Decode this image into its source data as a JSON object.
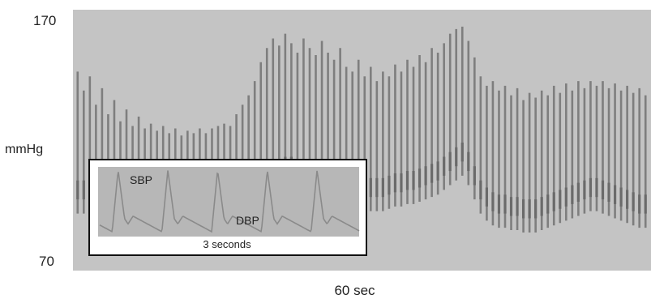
{
  "chart_data": {
    "type": "line",
    "title": "",
    "ylabel": "mmHg",
    "xlabel": "60 sec",
    "ylim": [
      70,
      170
    ],
    "yticks": [
      "170",
      "70"
    ],
    "series": [
      {
        "name": "",
        "description_free": true,
        "beats": [
          [
            150,
            100
          ],
          [
            142,
            100
          ],
          [
            148,
            98
          ],
          [
            136,
            96
          ],
          [
            143,
            96
          ],
          [
            132,
            94
          ],
          [
            138,
            94
          ],
          [
            129,
            93
          ],
          [
            134,
            92
          ],
          [
            127,
            92
          ],
          [
            131,
            91
          ],
          [
            126,
            91
          ],
          [
            128,
            90
          ],
          [
            125,
            90
          ],
          [
            127,
            90
          ],
          [
            124,
            89
          ],
          [
            126,
            89
          ],
          [
            123,
            89
          ],
          [
            125,
            89
          ],
          [
            124,
            88
          ],
          [
            126,
            89
          ],
          [
            124,
            89
          ],
          [
            126,
            90
          ],
          [
            127,
            90
          ],
          [
            128,
            90
          ],
          [
            127,
            90
          ],
          [
            132,
            92
          ],
          [
            136,
            95
          ],
          [
            140,
            98
          ],
          [
            146,
            100
          ],
          [
            154,
            104
          ],
          [
            160,
            106
          ],
          [
            164,
            108
          ],
          [
            161,
            109
          ],
          [
            166,
            110
          ],
          [
            162,
            110
          ],
          [
            158,
            109
          ],
          [
            164,
            108
          ],
          [
            160,
            107
          ],
          [
            157,
            106
          ],
          [
            163,
            106
          ],
          [
            158,
            105
          ],
          [
            155,
            104
          ],
          [
            160,
            104
          ],
          [
            152,
            103
          ],
          [
            150,
            102
          ],
          [
            155,
            102
          ],
          [
            148,
            102
          ],
          [
            152,
            101
          ],
          [
            146,
            101
          ],
          [
            150,
            101
          ],
          [
            148,
            102
          ],
          [
            153,
            103
          ],
          [
            150,
            103
          ],
          [
            155,
            104
          ],
          [
            152,
            104
          ],
          [
            157,
            105
          ],
          [
            154,
            106
          ],
          [
            160,
            107
          ],
          [
            158,
            108
          ],
          [
            162,
            110
          ],
          [
            166,
            112
          ],
          [
            168,
            114
          ],
          [
            169,
            116
          ],
          [
            163,
            112
          ],
          [
            156,
            106
          ],
          [
            148,
            100
          ],
          [
            144,
            97
          ],
          [
            146,
            95
          ],
          [
            142,
            94
          ],
          [
            144,
            94
          ],
          [
            140,
            93
          ],
          [
            143,
            93
          ],
          [
            138,
            92
          ],
          [
            141,
            92
          ],
          [
            139,
            92
          ],
          [
            142,
            93
          ],
          [
            140,
            94
          ],
          [
            144,
            95
          ],
          [
            141,
            96
          ],
          [
            145,
            97
          ],
          [
            142,
            98
          ],
          [
            146,
            99
          ],
          [
            143,
            100
          ],
          [
            146,
            101
          ],
          [
            144,
            101
          ],
          [
            146,
            100
          ],
          [
            143,
            99
          ],
          [
            145,
            98
          ],
          [
            142,
            97
          ],
          [
            144,
            96
          ],
          [
            141,
            95
          ],
          [
            143,
            94
          ],
          [
            140,
            94
          ]
        ]
      }
    ],
    "inset": {
      "title": "3 seconds",
      "labels": {
        "sbp": "SBP",
        "dbp": "DBP"
      }
    }
  },
  "colors": {
    "background": "#c4c4c4",
    "trace": "#7e7e7e",
    "inset_background": "#b7b7b7",
    "inset_trace": "#8a8a8a",
    "frame": "#111111"
  }
}
